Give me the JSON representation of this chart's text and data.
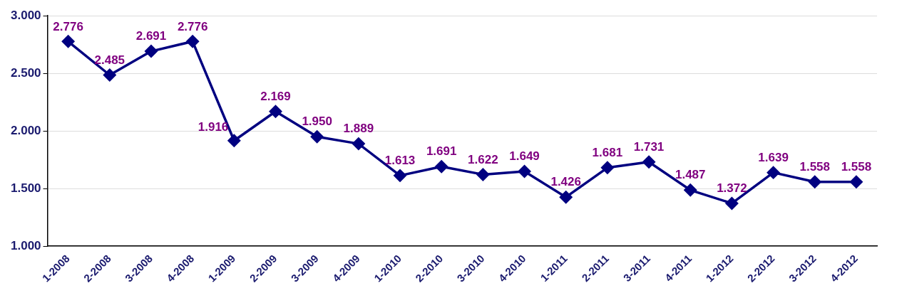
{
  "chart_data": {
    "type": "line",
    "categories": [
      "1-2008",
      "2-2008",
      "3-2008",
      "4-2008",
      "1-2009",
      "2-2009",
      "3-2009",
      "4-2009",
      "1-2010",
      "2-2010",
      "3-2010",
      "4-2010",
      "1-2011",
      "2-2011",
      "3-2011",
      "4-2011",
      "1-2012",
      "2-2012",
      "3-2012",
      "4-2012"
    ],
    "series": [
      {
        "color": "#000080",
        "values": [
          2776,
          2485,
          2691,
          2776,
          1916,
          2169,
          1950,
          1889,
          1613,
          1691,
          1622,
          1649,
          1426,
          1681,
          1731,
          1487,
          1372,
          1639,
          1558,
          1558
        ],
        "value_labels": [
          "2.776",
          "2.485",
          "2.691",
          "2.776",
          "1.916",
          "2.169",
          "1.950",
          "1.889",
          "1.613",
          "1.691",
          "1.622",
          "1.649",
          "1.426",
          "1.681",
          "1.731",
          "1.487",
          "1.372",
          "1.639",
          "1.558",
          "1.558"
        ]
      }
    ],
    "ylim": [
      1000,
      3000
    ],
    "yticks": [
      {
        "value": 1000,
        "label": "1.000"
      },
      {
        "value": 1500,
        "label": "1.500"
      },
      {
        "value": 2000,
        "label": "2.000"
      },
      {
        "value": 2500,
        "label": "2.500"
      },
      {
        "value": 3000,
        "label": "3.000"
      }
    ],
    "grid": "y",
    "legend": false,
    "marker": "diamond",
    "line_style": "solid"
  }
}
